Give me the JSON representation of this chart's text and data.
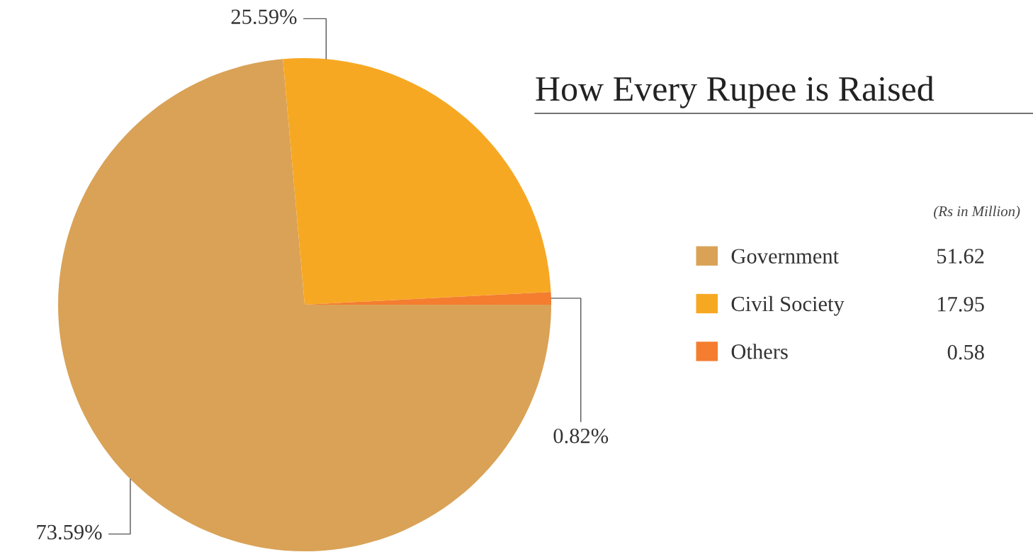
{
  "chart_data": {
    "type": "pie",
    "title": "How Every Rupee is Raised",
    "categories": [
      "Government",
      "Civil Society",
      "Others"
    ],
    "values": [
      73.59,
      25.59,
      0.82
    ],
    "value_labels": [
      "73.59%",
      "25.59%",
      "0.82%"
    ],
    "colors": [
      "#d9a257",
      "#f7a823",
      "#f47d2f"
    ],
    "annotations": [
      "(Rs in Million)",
      "51.62",
      "17.95",
      "0.58"
    ],
    "legend": "right"
  }
}
